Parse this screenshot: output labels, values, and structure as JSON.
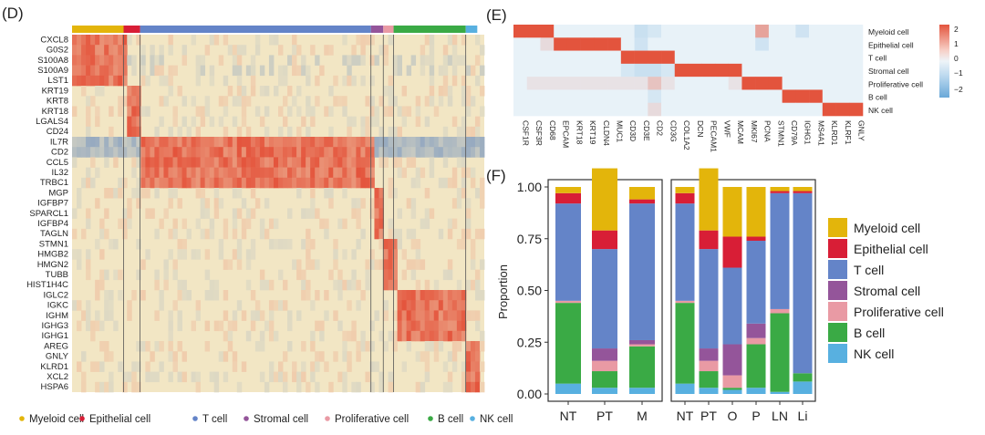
{
  "colors": {
    "myeloid": "#e3b50b",
    "epithelial": "#d81e36",
    "tcell": "#6484c8",
    "stromal": "#94559a",
    "proliferative": "#e99aa4",
    "bcell": "#3aaa45",
    "nkcell": "#58b0e0"
  },
  "heatmap": {
    "panel_label": "(D)",
    "genes": [
      "CXCL8",
      "G0S2",
      "S100A8",
      "S100A9",
      "LST1",
      "KRT19",
      "KRT8",
      "KRT18",
      "LGALS4",
      "CD24",
      "IL7R",
      "CD2",
      "CCL5",
      "IL32",
      "TRBC1",
      "MGP",
      "IGFBP7",
      "SPARCL1",
      "IGFBP4",
      "TAGLN",
      "STMN1",
      "HMGB2",
      "HMGN2",
      "TUBB",
      "HIST1H4C",
      "IGLC2",
      "IGKC",
      "IGHM",
      "IGHG3",
      "IGHG1",
      "AREG",
      "GNLY",
      "KLRD1",
      "XCL2",
      "HSPA6"
    ],
    "annotation_bar": [
      {
        "type": "myeloid",
        "fraction": 0.125
      },
      {
        "type": "epithelial",
        "fraction": 0.04
      },
      {
        "type": "tcell",
        "fraction": 0.56
      },
      {
        "type": "stromal",
        "fraction": 0.03
      },
      {
        "type": "proliferative",
        "fraction": 0.025
      },
      {
        "type": "bcell",
        "fraction": 0.175
      },
      {
        "type": "nkcell",
        "fraction": 0.028
      }
    ],
    "legend": [
      {
        "type": "myeloid",
        "label": "Myeloid cell"
      },
      {
        "type": "epithelial",
        "label": "Epithelial cell"
      },
      {
        "type": "tcell",
        "label": "T cell"
      },
      {
        "type": "stromal",
        "label": "Stromal cell"
      },
      {
        "type": "proliferative",
        "label": "Proliferative cell"
      },
      {
        "type": "bcell",
        "label": "B cell"
      },
      {
        "type": "nkcell",
        "label": "NK cell"
      }
    ]
  },
  "marker_heatmap": {
    "panel_label": "(E)",
    "genes": [
      "CSF1R",
      "CSF3R",
      "CD68",
      "EPCAM",
      "KRT18",
      "KRT19",
      "CLDN4",
      "MUC1",
      "CD3D",
      "CD3E",
      "CD2",
      "CD3G",
      "COL1A2",
      "DCN",
      "PECAM1",
      "VWF",
      "MCAM",
      "MKI67",
      "PCNA",
      "STMN1",
      "CD79A",
      "IGHG1",
      "MS4A1",
      "KLRD1",
      "KLRF1",
      "GNLY"
    ],
    "cell_types": [
      "Myeloid cell",
      "Epithelial cell",
      "T cell",
      "Stromal cell",
      "Proliferative cell",
      "B cell",
      "NK cell"
    ],
    "colorbar_ticks": [
      "2",
      "1",
      "0",
      "−1",
      "−2"
    ],
    "values": [
      [
        2,
        2,
        2,
        0,
        0,
        0,
        0,
        0,
        0,
        -0.5,
        -0.3,
        0,
        0,
        0,
        0,
        0,
        0,
        0,
        1,
        0,
        0,
        -0.4,
        0,
        0,
        0,
        0
      ],
      [
        0,
        0,
        0.3,
        2,
        2,
        2,
        2,
        2,
        0,
        -0.4,
        0,
        0,
        0,
        0,
        0,
        0,
        0,
        0,
        -0.4,
        0,
        0,
        0,
        0,
        0,
        0,
        0
      ],
      [
        0,
        0,
        0,
        0,
        0,
        0,
        0,
        0,
        2,
        2,
        2,
        2,
        0,
        0,
        0,
        0,
        0,
        0,
        0,
        0,
        0,
        0,
        0,
        0,
        0,
        0
      ],
      [
        0,
        0,
        0,
        0,
        0,
        0,
        0,
        0,
        -0.3,
        -0.5,
        -0.5,
        -0.3,
        2,
        2,
        2,
        2,
        2,
        0,
        0,
        0,
        0,
        0,
        0,
        0,
        0,
        0
      ],
      [
        0,
        0.2,
        0.2,
        0.2,
        0.2,
        0.2,
        0.2,
        0.2,
        0.2,
        0.2,
        0.6,
        0.2,
        0,
        0,
        0,
        0,
        0.2,
        2,
        2,
        2,
        0,
        0,
        0,
        0,
        0,
        0
      ],
      [
        0,
        0,
        0,
        0,
        0,
        0,
        0,
        0,
        0,
        0,
        -0.3,
        0,
        0,
        0,
        0,
        0,
        0,
        0,
        0,
        0,
        2,
        2,
        2,
        0,
        0,
        0
      ],
      [
        0,
        0,
        0,
        0,
        0,
        0,
        0,
        0,
        0,
        0,
        0.3,
        0,
        0,
        0,
        0,
        0,
        0,
        0,
        0,
        0,
        0,
        0,
        0,
        2,
        2,
        2
      ]
    ]
  },
  "chart_data": {
    "type": "bar",
    "panel_label": "(F)",
    "ylabel": "Proportion",
    "ylim": [
      0,
      1
    ],
    "yticks": [
      "0.00",
      "0.25",
      "0.50",
      "0.75",
      "1.00"
    ],
    "series_order": [
      "NK cell",
      "B cell",
      "Proliferative cell",
      "Stromal cell",
      "T cell",
      "Epithelial cell",
      "Myeloid cell"
    ],
    "legend": [
      "Myeloid cell",
      "Epithelial cell",
      "T cell",
      "Stromal cell",
      "Proliferative cell",
      "B cell",
      "NK cell"
    ],
    "groups": [
      {
        "categories": [
          "NT",
          "PT",
          "M"
        ],
        "stacks": [
          {
            "NK cell": 0.05,
            "B cell": 0.39,
            "Proliferative cell": 0.01,
            "Stromal cell": 0.0,
            "T cell": 0.47,
            "Epithelial cell": 0.05,
            "Myeloid cell": 0.03
          },
          {
            "NK cell": 0.03,
            "B cell": 0.08,
            "Proliferative cell": 0.05,
            "Stromal cell": 0.06,
            "T cell": 0.48,
            "Epithelial cell": 0.09,
            "Myeloid cell": 0.3
          },
          {
            "NK cell": 0.03,
            "B cell": 0.2,
            "Proliferative cell": 0.01,
            "Stromal cell": 0.02,
            "T cell": 0.66,
            "Epithelial cell": 0.02,
            "Myeloid cell": 0.06
          }
        ]
      },
      {
        "categories": [
          "NT",
          "PT",
          "O",
          "P",
          "LN",
          "Li"
        ],
        "stacks": [
          {
            "NK cell": 0.05,
            "B cell": 0.39,
            "Proliferative cell": 0.01,
            "Stromal cell": 0.0,
            "T cell": 0.47,
            "Epithelial cell": 0.05,
            "Myeloid cell": 0.03
          },
          {
            "NK cell": 0.03,
            "B cell": 0.08,
            "Proliferative cell": 0.05,
            "Stromal cell": 0.06,
            "T cell": 0.48,
            "Epithelial cell": 0.09,
            "Myeloid cell": 0.3
          },
          {
            "NK cell": 0.02,
            "B cell": 0.01,
            "Proliferative cell": 0.06,
            "Stromal cell": 0.15,
            "T cell": 0.37,
            "Epithelial cell": 0.15,
            "Myeloid cell": 0.24
          },
          {
            "NK cell": 0.03,
            "B cell": 0.21,
            "Proliferative cell": 0.03,
            "Stromal cell": 0.07,
            "T cell": 0.4,
            "Epithelial cell": 0.02,
            "Myeloid cell": 0.24
          },
          {
            "NK cell": 0.01,
            "B cell": 0.38,
            "Proliferative cell": 0.02,
            "Stromal cell": 0.0,
            "T cell": 0.56,
            "Epithelial cell": 0.01,
            "Myeloid cell": 0.02
          },
          {
            "NK cell": 0.06,
            "B cell": 0.04,
            "Proliferative cell": 0.0,
            "Stromal cell": 0.0,
            "T cell": 0.87,
            "Epithelial cell": 0.01,
            "Myeloid cell": 0.02
          }
        ]
      }
    ]
  }
}
